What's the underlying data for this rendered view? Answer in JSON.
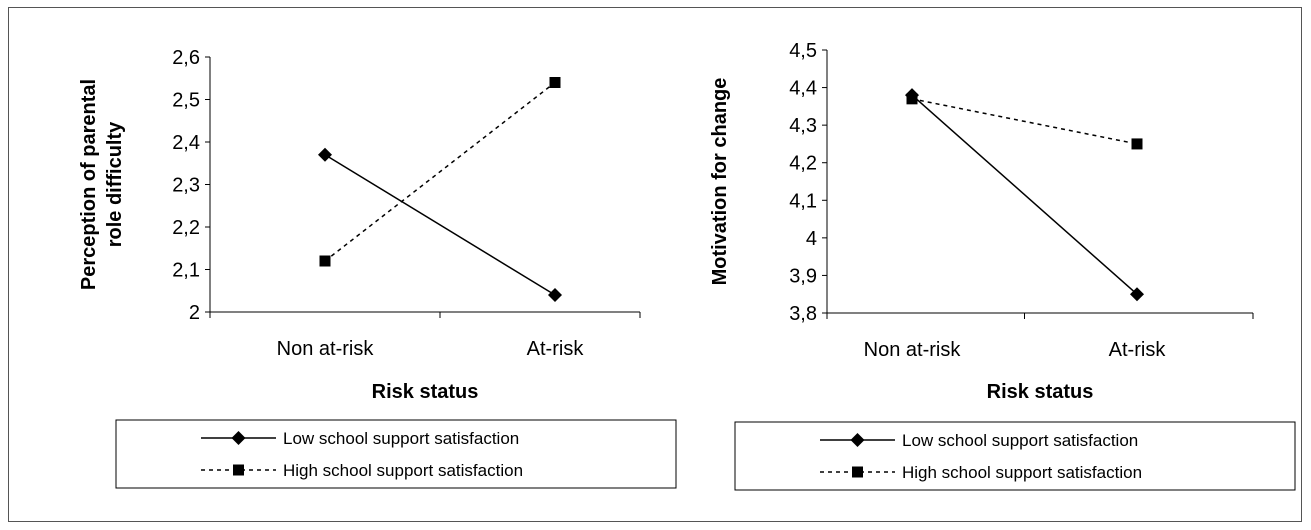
{
  "chart_data": [
    {
      "type": "line",
      "categories": [
        "Non at-risk",
        "At-risk"
      ],
      "xlabel": "Risk status",
      "ylabel_lines": [
        "Perception of parental",
        "role difficulty"
      ],
      "ylim": [
        2,
        2.6
      ],
      "yticks": [
        "2",
        "2,1",
        "2,2",
        "2,3",
        "2,4",
        "2,5",
        "2,6"
      ],
      "series": [
        {
          "name": "Low school support satisfaction",
          "values": [
            2.37,
            2.04
          ],
          "line": "solid",
          "marker": "diamond"
        },
        {
          "name": "High school support satisfaction",
          "values": [
            2.12,
            2.54
          ],
          "line": "dotted",
          "marker": "square"
        }
      ],
      "legend_position": "bottom",
      "grid": false
    },
    {
      "type": "line",
      "categories": [
        "Non at-risk",
        "At-risk"
      ],
      "xlabel": "Risk status",
      "ylabel_lines": [
        "Motivation for change"
      ],
      "ylim": [
        3.8,
        4.5
      ],
      "yticks": [
        "3,8",
        "3,9",
        "4",
        "4,1",
        "4,2",
        "4,3",
        "4,4",
        "4,5"
      ],
      "series": [
        {
          "name": "Low school support satisfaction",
          "values": [
            4.38,
            3.85
          ],
          "line": "solid",
          "marker": "diamond"
        },
        {
          "name": "High school support satisfaction",
          "values": [
            4.37,
            4.25
          ],
          "line": "dotted",
          "marker": "square"
        }
      ],
      "legend_position": "bottom",
      "grid": false
    }
  ],
  "colors": {
    "line": "#000000",
    "frame": "#555555",
    "axis": "#000000"
  }
}
